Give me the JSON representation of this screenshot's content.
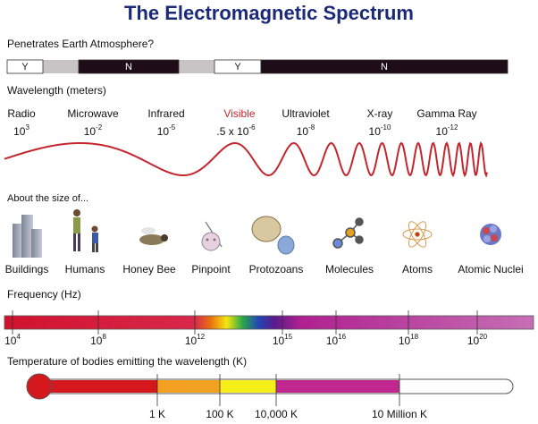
{
  "title": "The Electromagnetic Spectrum",
  "atmosphere": {
    "label": "Penetrates Earth Atmosphere?",
    "segments": [
      "Y",
      "N",
      "Y",
      "N"
    ]
  },
  "wavelength": {
    "label": "Wavelength (meters)",
    "bands": [
      {
        "name": "Radio",
        "base": "10",
        "exp": "3"
      },
      {
        "name": "Microwave",
        "base": "10",
        "exp": "-2"
      },
      {
        "name": "Infrared",
        "base": "10",
        "exp": "-5"
      },
      {
        "name": "Visible",
        "base": ".5 x 10",
        "exp": "-6"
      },
      {
        "name": "Ultraviolet",
        "base": "10",
        "exp": "-8"
      },
      {
        "name": "X-ray",
        "base": "10",
        "exp": "-10"
      },
      {
        "name": "Gamma Ray",
        "base": "10",
        "exp": "-12"
      }
    ]
  },
  "size": {
    "label": "About the size of...",
    "items": [
      "Buildings",
      "Humans",
      "Honey Bee",
      "Pinpoint",
      "Protozoans",
      "Molecules",
      "Atoms",
      "Atomic Nuclei"
    ]
  },
  "frequency": {
    "label": "Frequency (Hz)",
    "ticks": [
      {
        "base": "10",
        "exp": "4"
      },
      {
        "base": "10",
        "exp": "8"
      },
      {
        "base": "10",
        "exp": "12"
      },
      {
        "base": "10",
        "exp": "15"
      },
      {
        "base": "10",
        "exp": "16"
      },
      {
        "base": "10",
        "exp": "18"
      },
      {
        "base": "10",
        "exp": "20"
      }
    ]
  },
  "temperature": {
    "label": "Temperature of bodies emitting the wavelength (K)",
    "ticks": [
      "1 K",
      "100 K",
      "10,000 K",
      "10 Million K"
    ]
  }
}
